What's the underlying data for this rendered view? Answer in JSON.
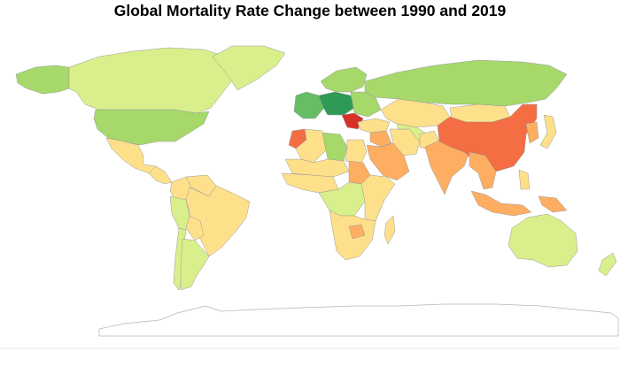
{
  "title": "Global Mortality Rate Change between 1990 and 2019",
  "colors": {
    "strong_decrease": "#2e9a56",
    "decrease": "#66bd63",
    "moderate_decrease": "#a6d96a",
    "slight_decrease": "#d9ef8b",
    "neutral": "#fee08b",
    "slight_increase": "#fdc878",
    "increase": "#fdae61",
    "strong_increase": "#f46d43",
    "extreme_increase": "#d73027",
    "no_data": "#ffffff"
  },
  "regions": [
    {
      "name": "Canada",
      "category": "slight_decrease"
    },
    {
      "name": "Alaska",
      "category": "moderate_decrease"
    },
    {
      "name": "Greenland",
      "category": "slight_decrease"
    },
    {
      "name": "United States",
      "category": "moderate_decrease"
    },
    {
      "name": "Mexico",
      "category": "neutral"
    },
    {
      "name": "Central America",
      "category": "neutral"
    },
    {
      "name": "Colombia",
      "category": "neutral"
    },
    {
      "name": "Venezuela",
      "category": "neutral"
    },
    {
      "name": "Peru",
      "category": "slight_decrease"
    },
    {
      "name": "Brazil",
      "category": "neutral"
    },
    {
      "name": "Bolivia",
      "category": "neutral"
    },
    {
      "name": "Chile",
      "category": "slight_decrease"
    },
    {
      "name": "Argentina",
      "category": "slight_decrease"
    },
    {
      "name": "Russia",
      "category": "moderate_decrease"
    },
    {
      "name": "Scandinavia",
      "category": "moderate_decrease"
    },
    {
      "name": "Western Europe",
      "category": "decrease"
    },
    {
      "name": "Central Europe",
      "category": "strong_decrease"
    },
    {
      "name": "Eastern Europe",
      "category": "moderate_decrease"
    },
    {
      "name": "Balkans",
      "category": "extreme_increase"
    },
    {
      "name": "Morocco",
      "category": "strong_increase"
    },
    {
      "name": "Algeria",
      "category": "neutral"
    },
    {
      "name": "Libya",
      "category": "moderate_decrease"
    },
    {
      "name": "Egypt",
      "category": "neutral"
    },
    {
      "name": "Sudan",
      "category": "increase"
    },
    {
      "name": "Sahel",
      "category": "neutral"
    },
    {
      "name": "West Africa",
      "category": "neutral"
    },
    {
      "name": "Central Africa",
      "category": "slight_decrease"
    },
    {
      "name": "East Africa",
      "category": "neutral"
    },
    {
      "name": "Southern Africa",
      "category": "neutral"
    },
    {
      "name": "Zimbabwe",
      "category": "increase"
    },
    {
      "name": "Madagascar",
      "category": "neutral"
    },
    {
      "name": "Turkey",
      "category": "neutral"
    },
    {
      "name": "Iraq",
      "category": "increase"
    },
    {
      "name": "Saudi Arabia",
      "category": "increase"
    },
    {
      "name": "Iran",
      "category": "neutral"
    },
    {
      "name": "Kazakhstan",
      "category": "neutral"
    },
    {
      "name": "Central Asia",
      "category": "slight_decrease"
    },
    {
      "name": "Afghanistan",
      "category": "neutral"
    },
    {
      "name": "India",
      "category": "increase"
    },
    {
      "name": "Mongolia",
      "category": "neutral"
    },
    {
      "name": "China",
      "category": "strong_increase"
    },
    {
      "name": "Korea",
      "category": "increase"
    },
    {
      "name": "Japan",
      "category": "neutral"
    },
    {
      "name": "Southeast Asia",
      "category": "increase"
    },
    {
      "name": "Indonesia",
      "category": "increase"
    },
    {
      "name": "Philippines",
      "category": "neutral"
    },
    {
      "name": "Papua New Guinea",
      "category": "increase"
    },
    {
      "name": "Australia",
      "category": "slight_decrease"
    },
    {
      "name": "New Zealand",
      "category": "slight_decrease"
    },
    {
      "name": "Antarctica",
      "category": "no_data"
    }
  ]
}
